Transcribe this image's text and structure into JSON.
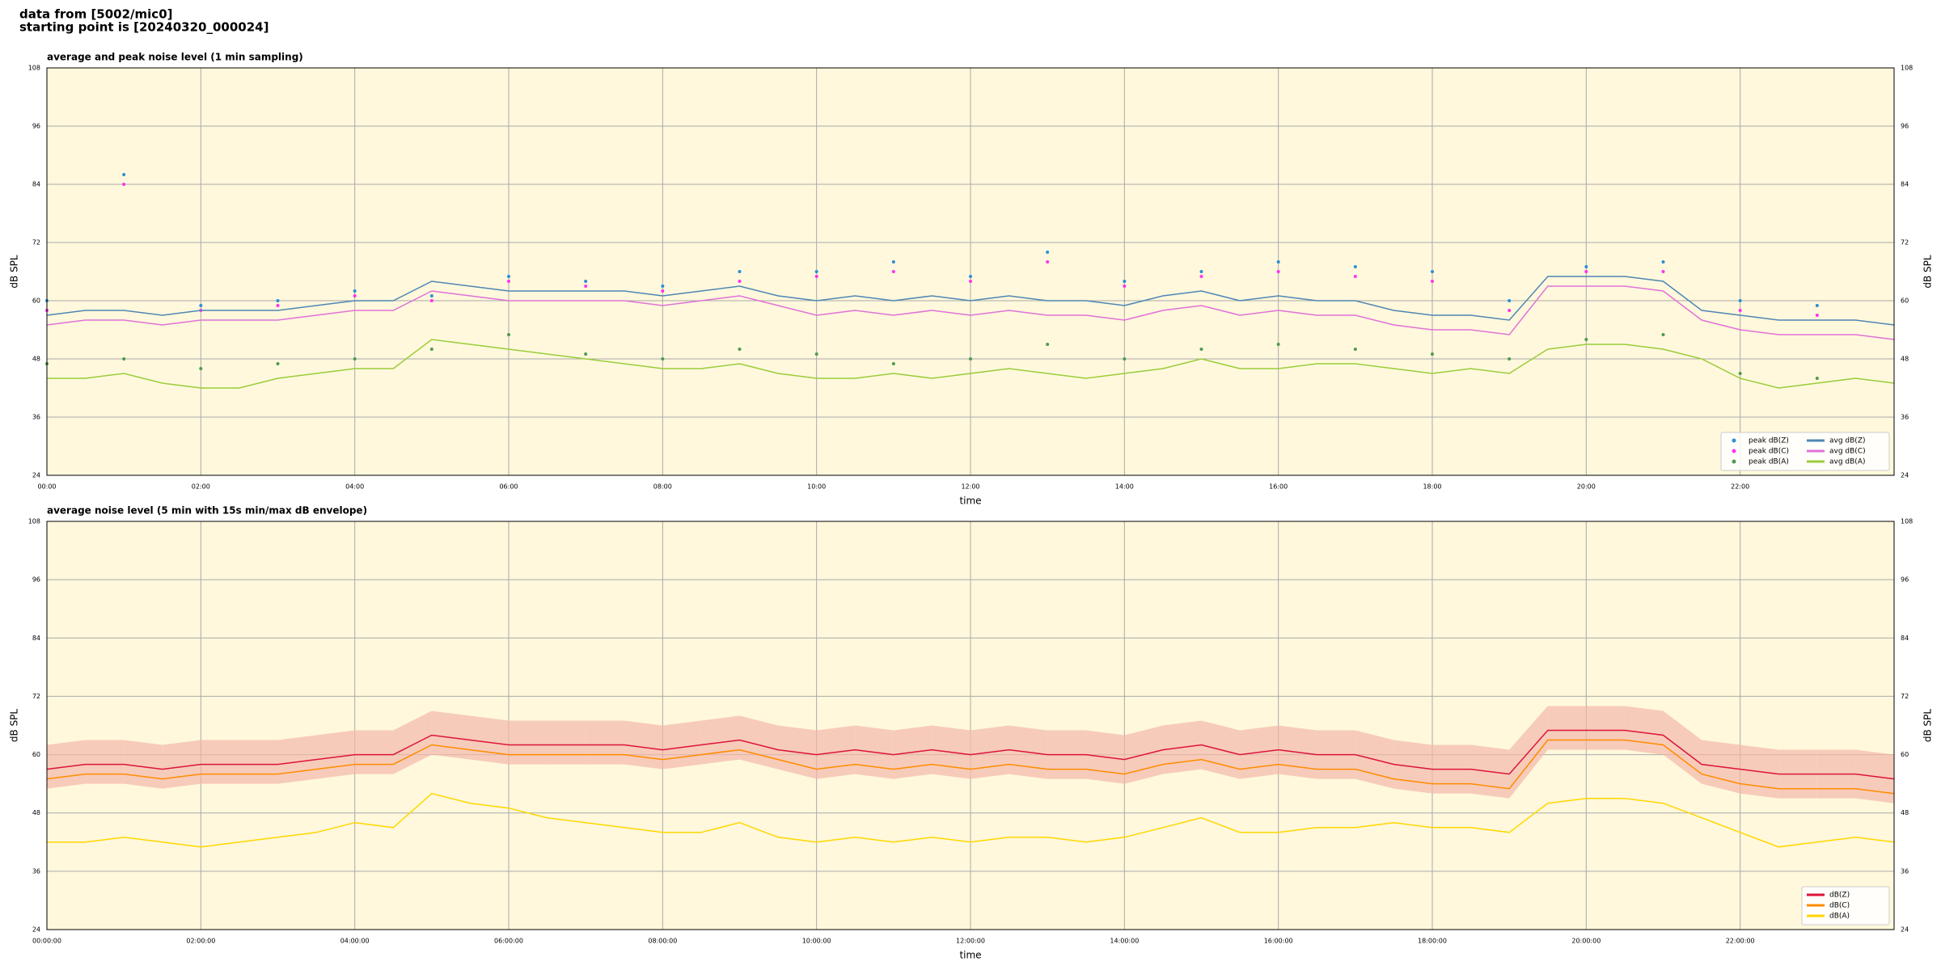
{
  "header": {
    "lines": [
      "data from [5002/mic0]",
      "starting point is [20240320_000024]"
    ]
  },
  "chart_data": [
    {
      "type": "line",
      "title": "average and peak noise level (1 min sampling)",
      "x_label": "time",
      "y_label": "dB SPL",
      "x": [
        0,
        30,
        60,
        90,
        120,
        150,
        180,
        210,
        240,
        270,
        300,
        330,
        360,
        390,
        420,
        450,
        480,
        510,
        540,
        570,
        600,
        630,
        660,
        690,
        720,
        750,
        780,
        810,
        840,
        870,
        900,
        930,
        960,
        990,
        1020,
        1050,
        1080,
        1110,
        1140,
        1170,
        1200,
        1230,
        1260,
        1290,
        1320,
        1350,
        1380,
        1410,
        1440
      ],
      "xlim": [
        0,
        1440
      ],
      "xticks": [
        {
          "value": 0,
          "label": "00:00"
        },
        {
          "value": 120,
          "label": "02:00"
        },
        {
          "value": 240,
          "label": "04:00"
        },
        {
          "value": 360,
          "label": "06:00"
        },
        {
          "value": 480,
          "label": "08:00"
        },
        {
          "value": 600,
          "label": "10:00"
        },
        {
          "value": 720,
          "label": "12:00"
        },
        {
          "value": 840,
          "label": "14:00"
        },
        {
          "value": 960,
          "label": "16:00"
        },
        {
          "value": 1080,
          "label": "18:00"
        },
        {
          "value": 1200,
          "label": "20:00"
        },
        {
          "value": 1320,
          "label": "22:00"
        }
      ],
      "ylim": [
        24,
        108
      ],
      "yticks": [
        24,
        36,
        48,
        60,
        72,
        84,
        96,
        108
      ],
      "grid": true,
      "right_axis": true,
      "legend": "lower right",
      "legend_columns": 2,
      "series": [
        {
          "name": "peak dB(Z)",
          "color": "#2b8fd6",
          "style": "dots",
          "x": [
            0,
            60,
            120,
            180,
            240,
            300,
            360,
            420,
            480,
            540,
            600,
            660,
            720,
            780,
            840,
            900,
            960,
            1020,
            1080,
            1140,
            1200,
            1260,
            1320,
            1380
          ],
          "values": [
            60,
            86,
            59,
            60,
            62,
            61,
            65,
            64,
            63,
            66,
            66,
            68,
            65,
            70,
            64,
            66,
            68,
            67,
            66,
            60,
            67,
            68,
            60,
            59
          ]
        },
        {
          "name": "peak dB(C)",
          "color": "#ff33ee",
          "style": "dots",
          "x": [
            0,
            60,
            120,
            180,
            240,
            300,
            360,
            420,
            480,
            540,
            600,
            660,
            720,
            780,
            840,
            900,
            960,
            1020,
            1080,
            1140,
            1200,
            1260,
            1320,
            1380
          ],
          "values": [
            58,
            84,
            58,
            59,
            61,
            60,
            64,
            63,
            62,
            64,
            65,
            66,
            64,
            68,
            63,
            65,
            66,
            65,
            64,
            58,
            66,
            66,
            58,
            57
          ]
        },
        {
          "name": "peak dB(A)",
          "color": "#4f9a4f",
          "style": "dots",
          "x": [
            0,
            60,
            120,
            180,
            240,
            300,
            360,
            420,
            480,
            540,
            600,
            660,
            720,
            780,
            840,
            900,
            960,
            1020,
            1080,
            1140,
            1200,
            1260,
            1320,
            1380
          ],
          "values": [
            47,
            48,
            46,
            47,
            48,
            50,
            53,
            49,
            48,
            50,
            49,
            47,
            48,
            51,
            48,
            50,
            51,
            50,
            49,
            48,
            52,
            53,
            45,
            44
          ]
        },
        {
          "name": "avg dB(Z)",
          "color": "#4f86b4",
          "style": "line",
          "values": [
            57,
            58,
            58,
            57,
            58,
            58,
            58,
            59,
            60,
            60,
            64,
            63,
            62,
            62,
            62,
            62,
            61,
            62,
            63,
            61,
            60,
            61,
            60,
            61,
            60,
            61,
            60,
            60,
            59,
            61,
            62,
            60,
            61,
            60,
            60,
            58,
            57,
            57,
            56,
            65,
            65,
            65,
            64,
            58,
            57,
            56,
            56,
            56,
            55
          ]
        },
        {
          "name": "avg dB(C)",
          "color": "#e072d8",
          "style": "line",
          "values": [
            55,
            56,
            56,
            55,
            56,
            56,
            56,
            57,
            58,
            58,
            62,
            61,
            60,
            60,
            60,
            60,
            59,
            60,
            61,
            59,
            57,
            58,
            57,
            58,
            57,
            58,
            57,
            57,
            56,
            58,
            59,
            57,
            58,
            57,
            57,
            55,
            54,
            54,
            53,
            63,
            63,
            63,
            62,
            56,
            54,
            53,
            53,
            53,
            52
          ]
        },
        {
          "name": "avg dB(A)",
          "color": "#9acd3a",
          "style": "line",
          "values": [
            44,
            44,
            45,
            43,
            42,
            42,
            44,
            45,
            46,
            46,
            52,
            51,
            50,
            49,
            48,
            47,
            46,
            46,
            47,
            45,
            44,
            44,
            45,
            44,
            45,
            46,
            45,
            44,
            45,
            46,
            48,
            46,
            46,
            47,
            47,
            46,
            45,
            46,
            45,
            50,
            51,
            51,
            50,
            48,
            44,
            42,
            43,
            44,
            43
          ]
        }
      ]
    },
    {
      "type": "line",
      "title": "average noise level (5 min with 15s min/max dB envelope)",
      "x_label": "time",
      "y_label": "dB SPL",
      "x": [
        0,
        30,
        60,
        90,
        120,
        150,
        180,
        210,
        240,
        270,
        300,
        330,
        360,
        390,
        420,
        450,
        480,
        510,
        540,
        570,
        600,
        630,
        660,
        690,
        720,
        750,
        780,
        810,
        840,
        870,
        900,
        930,
        960,
        990,
        1020,
        1050,
        1080,
        1110,
        1140,
        1170,
        1200,
        1230,
        1260,
        1290,
        1320,
        1350,
        1380,
        1410,
        1440
      ],
      "xlim": [
        0,
        1440
      ],
      "xticks": [
        {
          "value": 0,
          "label": "00:00:00"
        },
        {
          "value": 120,
          "label": "02:00:00"
        },
        {
          "value": 240,
          "label": "04:00:00"
        },
        {
          "value": 360,
          "label": "06:00:00"
        },
        {
          "value": 480,
          "label": "08:00:00"
        },
        {
          "value": 600,
          "label": "10:00:00"
        },
        {
          "value": 720,
          "label": "12:00:00"
        },
        {
          "value": 840,
          "label": "14:00:00"
        },
        {
          "value": 960,
          "label": "16:00:00"
        },
        {
          "value": 1080,
          "label": "18:00:00"
        },
        {
          "value": 1200,
          "label": "20:00:00"
        },
        {
          "value": 1320,
          "label": "22:00:00"
        }
      ],
      "ylim": [
        24,
        108
      ],
      "yticks": [
        24,
        36,
        48,
        60,
        72,
        84,
        96,
        108
      ],
      "grid": true,
      "right_axis": true,
      "legend": "lower right",
      "legend_columns": 1,
      "envelope": {
        "color": "#f4b8aa",
        "high": [
          62,
          63,
          63,
          62,
          63,
          63,
          63,
          64,
          65,
          65,
          69,
          68,
          67,
          67,
          67,
          67,
          66,
          67,
          68,
          66,
          65,
          66,
          65,
          66,
          65,
          66,
          65,
          65,
          64,
          66,
          67,
          65,
          66,
          65,
          65,
          63,
          62,
          62,
          61,
          70,
          70,
          70,
          69,
          63,
          62,
          61,
          61,
          61,
          60
        ],
        "low": [
          53,
          54,
          54,
          53,
          54,
          54,
          54,
          55,
          56,
          56,
          60,
          59,
          58,
          58,
          58,
          58,
          57,
          58,
          59,
          57,
          55,
          56,
          55,
          56,
          55,
          56,
          55,
          55,
          54,
          56,
          57,
          55,
          56,
          55,
          55,
          53,
          52,
          52,
          51,
          61,
          61,
          61,
          60,
          54,
          52,
          51,
          51,
          51,
          50
        ]
      },
      "series": [
        {
          "name": "dB(Z)",
          "color": "#dc143c",
          "style": "line",
          "values": [
            57,
            58,
            58,
            57,
            58,
            58,
            58,
            59,
            60,
            60,
            64,
            63,
            62,
            62,
            62,
            62,
            61,
            62,
            63,
            61,
            60,
            61,
            60,
            61,
            60,
            61,
            60,
            60,
            59,
            61,
            62,
            60,
            61,
            60,
            60,
            58,
            57,
            57,
            56,
            65,
            65,
            65,
            64,
            58,
            57,
            56,
            56,
            56,
            55
          ]
        },
        {
          "name": "dB(C)",
          "color": "#ff8c00",
          "style": "line",
          "values": [
            55,
            56,
            56,
            55,
            56,
            56,
            56,
            57,
            58,
            58,
            62,
            61,
            60,
            60,
            60,
            60,
            59,
            60,
            61,
            59,
            57,
            58,
            57,
            58,
            57,
            58,
            57,
            57,
            56,
            58,
            59,
            57,
            58,
            57,
            57,
            55,
            54,
            54,
            53,
            63,
            63,
            63,
            62,
            56,
            54,
            53,
            53,
            53,
            52
          ]
        },
        {
          "name": "dB(A)",
          "color": "#ffd700",
          "style": "line",
          "values": [
            42,
            42,
            43,
            42,
            41,
            42,
            43,
            44,
            46,
            45,
            52,
            50,
            49,
            47,
            46,
            45,
            44,
            44,
            46,
            43,
            42,
            43,
            42,
            43,
            42,
            43,
            43,
            42,
            43,
            45,
            47,
            44,
            44,
            45,
            45,
            46,
            45,
            45,
            44,
            50,
            51,
            51,
            50,
            47,
            44,
            41,
            42,
            43,
            42
          ]
        }
      ]
    }
  ]
}
